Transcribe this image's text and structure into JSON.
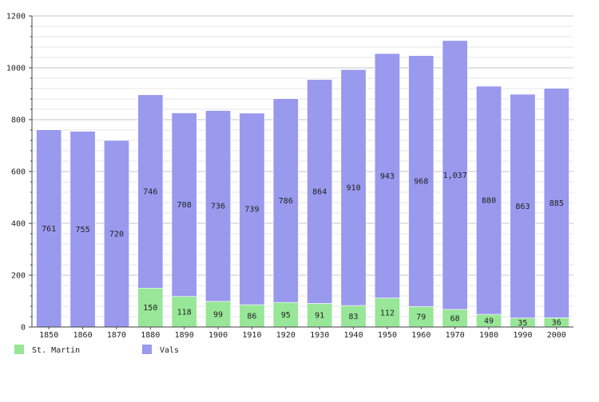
{
  "chart_data": {
    "type": "bar",
    "stacked": true,
    "categories": [
      "1850",
      "1860",
      "1870",
      "1880",
      "1890",
      "1900",
      "1910",
      "1920",
      "1930",
      "1940",
      "1950",
      "1960",
      "1970",
      "1980",
      "1990",
      "2000"
    ],
    "series": [
      {
        "name": "St. Martin",
        "color": "#98e698",
        "values": [
          0,
          0,
          0,
          150,
          118,
          99,
          86,
          95,
          91,
          83,
          112,
          79,
          68,
          49,
          35,
          36
        ],
        "labels": [
          "",
          "",
          "",
          "150",
          "118",
          "99",
          "86",
          "95",
          "91",
          "83",
          "112",
          "79",
          "68",
          "49",
          "35",
          "36"
        ]
      },
      {
        "name": "Vals",
        "color": "#9999ee",
        "values": [
          761,
          755,
          720,
          746,
          708,
          736,
          739,
          786,
          864,
          910,
          943,
          968,
          1037,
          880,
          863,
          885
        ],
        "labels": [
          "761",
          "755",
          "720",
          "746",
          "708",
          "736",
          "739",
          "786",
          "864",
          "910",
          "943",
          "968",
          "1,037",
          "880",
          "863",
          "885"
        ]
      }
    ],
    "ylim": [
      0,
      1200
    ],
    "yticks": [
      "0",
      "200",
      "400",
      "600",
      "800",
      "1000",
      "1200"
    ],
    "grid": true,
    "legend": "bottom-left"
  }
}
